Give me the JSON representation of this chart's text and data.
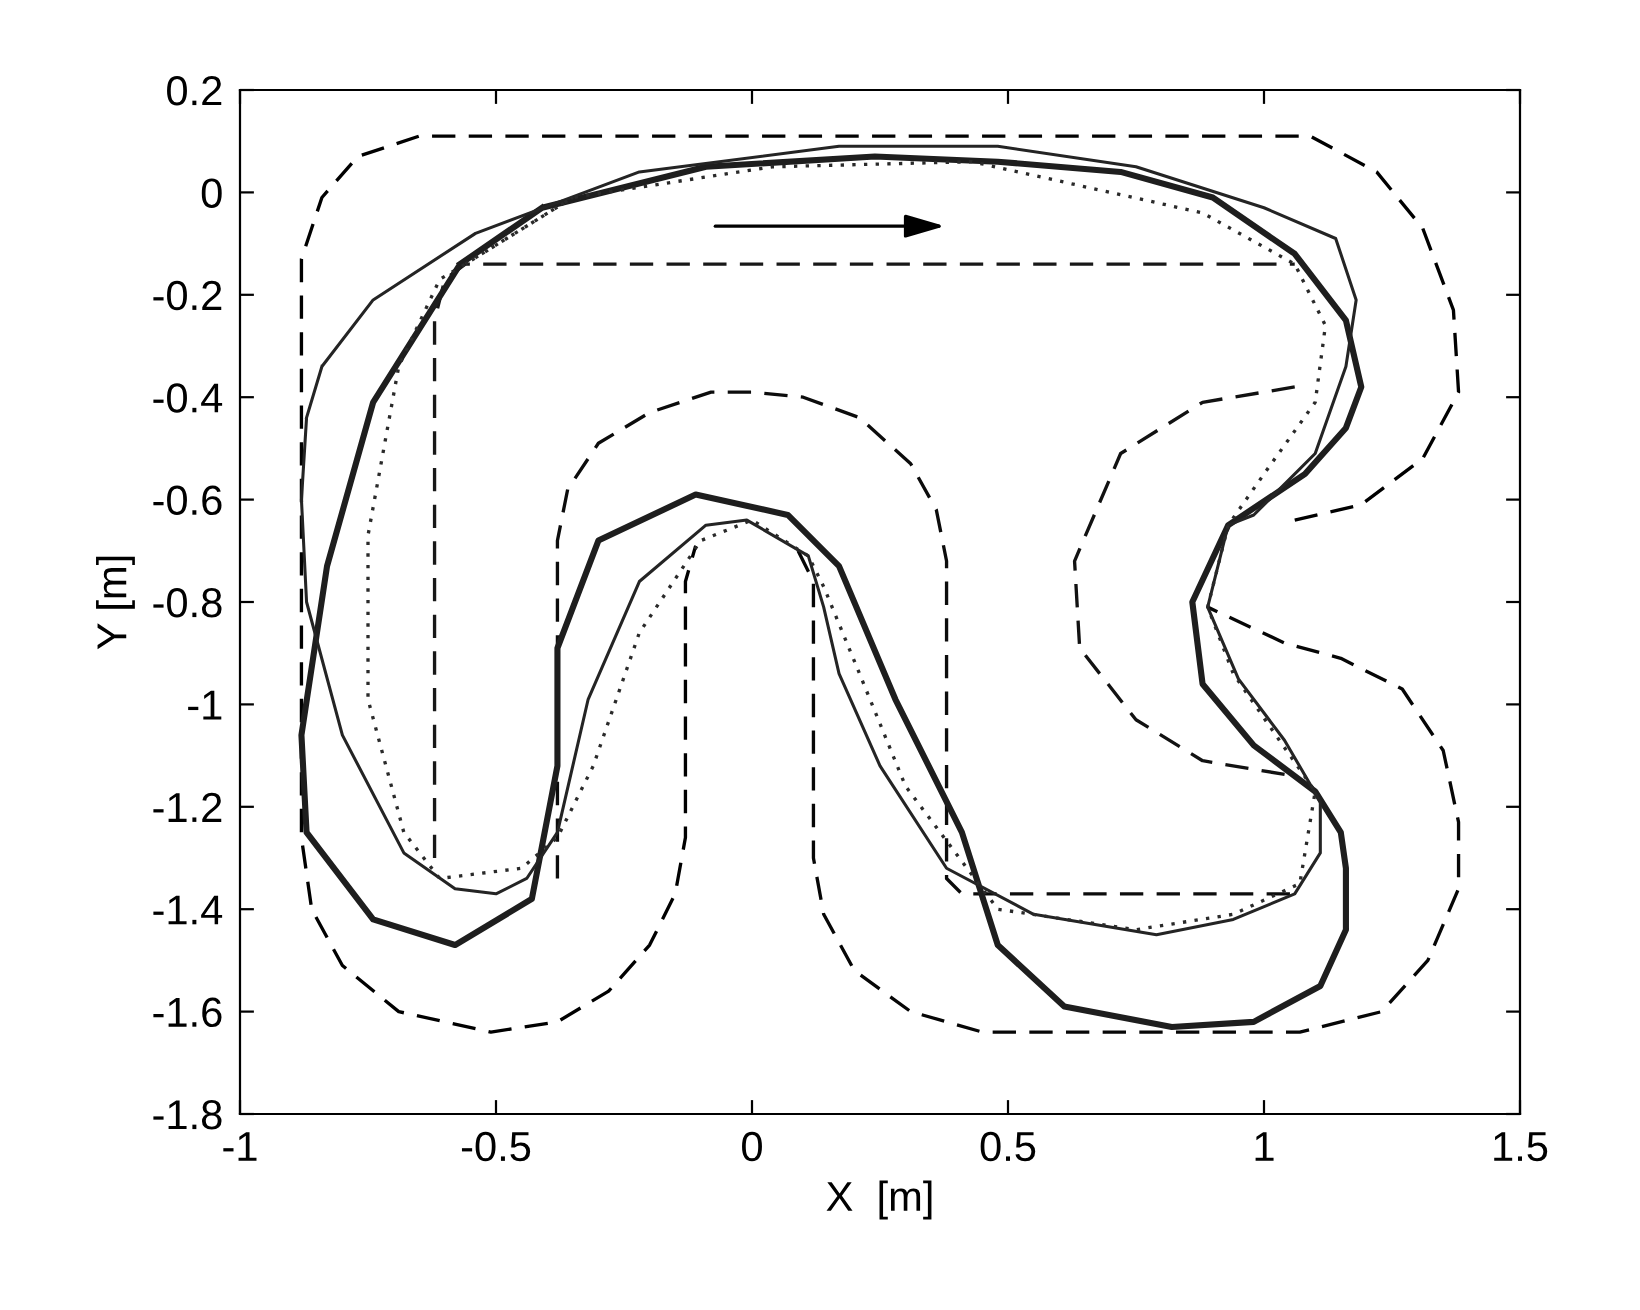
{
  "chart_data": {
    "type": "line",
    "xlabel": "X  [m]",
    "ylabel": "Y [m]",
    "xlim": [
      -1,
      1.5
    ],
    "xticks": [
      -1,
      -0.5,
      0,
      0.5,
      1,
      1.5
    ],
    "ylim": [
      -1.8,
      0.2
    ],
    "yticks": [
      -1.8,
      -1.6,
      -1.4,
      -1.2,
      -1,
      -0.8,
      -0.6,
      -0.4,
      -0.2,
      0,
      0.2
    ],
    "grid": false,
    "legend": false,
    "marker": "none",
    "series": [
      {
        "color": "#000000",
        "line_style": "dashed",
        "x": [
          1.06,
          1.19,
          1.31,
          1.38,
          1.37,
          1.31,
          1.22,
          1.09,
          -0.65,
          -0.77,
          -0.84,
          -0.88,
          -0.88,
          -0.88,
          -0.86,
          -0.8,
          -0.69,
          -0.51,
          -0.38,
          -0.28,
          -0.2,
          -0.15,
          -0.13,
          -0.13,
          -0.11
        ],
        "values": [
          -0.64,
          -0.61,
          -0.52,
          -0.39,
          -0.23,
          -0.07,
          0.04,
          0.11,
          0.11,
          0.07,
          -0.01,
          -0.13,
          -0.25,
          -1.26,
          -1.4,
          -1.51,
          -1.6,
          -1.64,
          -1.62,
          -1.56,
          -1.47,
          -1.37,
          -1.26,
          -0.76,
          -0.69
        ]
      },
      {
        "color": "#060606",
        "line_style": "dashed",
        "x": [
          0.09,
          0.12,
          0.12,
          0.14,
          0.2,
          0.31,
          0.45,
          1.07,
          1.23,
          1.32,
          1.38,
          1.38,
          1.35,
          1.27,
          1.15,
          1.04,
          0.89
        ],
        "values": [
          -0.7,
          -0.76,
          -1.3,
          -1.41,
          -1.52,
          -1.6,
          -1.64,
          -1.64,
          -1.6,
          -1.5,
          -1.36,
          -1.23,
          -1.09,
          -0.97,
          -0.91,
          -0.88,
          -0.81
        ]
      },
      {
        "color": "#0c0c0c",
        "line_style": "dashed",
        "x": [
          -0.38,
          -0.38,
          -0.36,
          -0.3,
          -0.2,
          -0.08,
          0.0,
          0.1,
          0.21,
          0.31,
          0.36,
          0.38,
          0.38,
          0.41,
          1.06
        ],
        "values": [
          -1.34,
          -0.68,
          -0.58,
          -0.49,
          -0.43,
          -0.39,
          -0.39,
          -0.4,
          -0.44,
          -0.53,
          -0.62,
          -0.72,
          -1.34,
          -1.37,
          -1.37
        ]
      },
      {
        "color": "#121212",
        "line_style": "dashed",
        "x": [
          1.06,
          0.88,
          0.72,
          0.63,
          0.64,
          0.75,
          0.88,
          1.06
        ],
        "values": [
          -0.38,
          -0.41,
          -0.51,
          -0.72,
          -0.89,
          -1.03,
          -1.11,
          -1.14
        ]
      },
      {
        "color": "#181818",
        "line_style": "dashed",
        "x": [
          -0.62,
          -0.62,
          -0.6,
          -0.56,
          1.06
        ],
        "values": [
          -1.3,
          -0.25,
          -0.17,
          -0.14,
          -0.14
        ]
      },
      {
        "color": "#1e1e1e",
        "line_style": "solid",
        "x": [
          -0.57,
          -0.41,
          -0.09,
          0.24,
          0.48,
          0.72,
          0.9,
          1.06,
          1.16,
          1.19,
          1.16,
          1.08,
          0.93,
          0.86,
          0.88,
          0.98,
          1.1,
          1.15,
          1.16,
          1.16,
          1.11,
          0.98,
          0.82,
          0.61,
          0.48,
          0.41,
          0.28,
          0.17,
          0.07,
          -0.11,
          -0.3,
          -0.38,
          -0.38,
          -0.43,
          -0.58,
          -0.74,
          -0.87,
          -0.88,
          -0.83,
          -0.74,
          -0.57,
          -0.41
        ],
        "values": [
          -0.14,
          -0.03,
          0.05,
          0.07,
          0.06,
          0.04,
          -0.01,
          -0.12,
          -0.25,
          -0.38,
          -0.46,
          -0.55,
          -0.65,
          -0.8,
          -0.96,
          -1.08,
          -1.17,
          -1.25,
          -1.32,
          -1.44,
          -1.55,
          -1.62,
          -1.63,
          -1.59,
          -1.47,
          -1.25,
          -0.99,
          -0.73,
          -0.63,
          -0.59,
          -0.68,
          -0.89,
          -1.12,
          -1.38,
          -1.47,
          -1.42,
          -1.25,
          -1.06,
          -0.73,
          -0.41,
          -0.14,
          -0.03
        ]
      },
      {
        "color": "#242424",
        "line_style": "solid",
        "x": [
          -0.87,
          -0.84,
          -0.74,
          -0.54,
          -0.22,
          0.17,
          0.48,
          0.75,
          1.0,
          1.14,
          1.18,
          1.16,
          1.1,
          0.98,
          0.93,
          0.89,
          0.95,
          1.04,
          1.11,
          1.11,
          1.06,
          0.94,
          0.79,
          0.55,
          0.38,
          0.25,
          0.17,
          0.14,
          0.11,
          -0.01,
          -0.09,
          -0.22,
          -0.32,
          -0.38,
          -0.44,
          -0.5,
          -0.58,
          -0.68,
          -0.8,
          -0.87,
          -0.88,
          -0.87,
          -0.84
        ],
        "values": [
          -0.44,
          -0.34,
          -0.21,
          -0.08,
          0.04,
          0.09,
          0.09,
          0.05,
          -0.03,
          -0.09,
          -0.21,
          -0.34,
          -0.51,
          -0.63,
          -0.65,
          -0.81,
          -0.95,
          -1.07,
          -1.19,
          -1.29,
          -1.37,
          -1.42,
          -1.45,
          -1.41,
          -1.32,
          -1.12,
          -0.94,
          -0.81,
          -0.71,
          -0.64,
          -0.65,
          -0.76,
          -0.99,
          -1.25,
          -1.34,
          -1.37,
          -1.36,
          -1.29,
          -1.06,
          -0.8,
          -0.6,
          -0.44,
          -0.34
        ]
      },
      {
        "color": "#2a2a2a",
        "line_style": "dotted",
        "x": [
          -0.56,
          -0.35,
          0.04,
          0.43,
          0.88,
          1.06,
          1.12,
          1.1,
          1.0,
          0.93,
          0.89,
          0.94,
          1.03,
          1.1,
          1.07,
          0.94,
          0.75,
          0.48,
          0.3,
          0.21,
          0.14,
          0.11,
          0.0,
          -0.1,
          -0.22,
          -0.31,
          -0.38,
          -0.45,
          -0.61,
          -0.68,
          -0.75,
          -0.75,
          -0.69,
          -0.61,
          -0.56,
          -0.35
        ],
        "values": [
          -0.14,
          -0.01,
          0.05,
          0.06,
          -0.04,
          -0.14,
          -0.26,
          -0.41,
          -0.55,
          -0.65,
          -0.81,
          -0.94,
          -1.07,
          -1.17,
          -1.35,
          -1.41,
          -1.44,
          -1.4,
          -1.16,
          -0.94,
          -0.77,
          -0.71,
          -0.64,
          -0.68,
          -0.86,
          -1.12,
          -1.26,
          -1.32,
          -1.34,
          -1.25,
          -0.99,
          -0.67,
          -0.34,
          -0.17,
          -0.14,
          -0.01
        ]
      }
    ]
  }
}
